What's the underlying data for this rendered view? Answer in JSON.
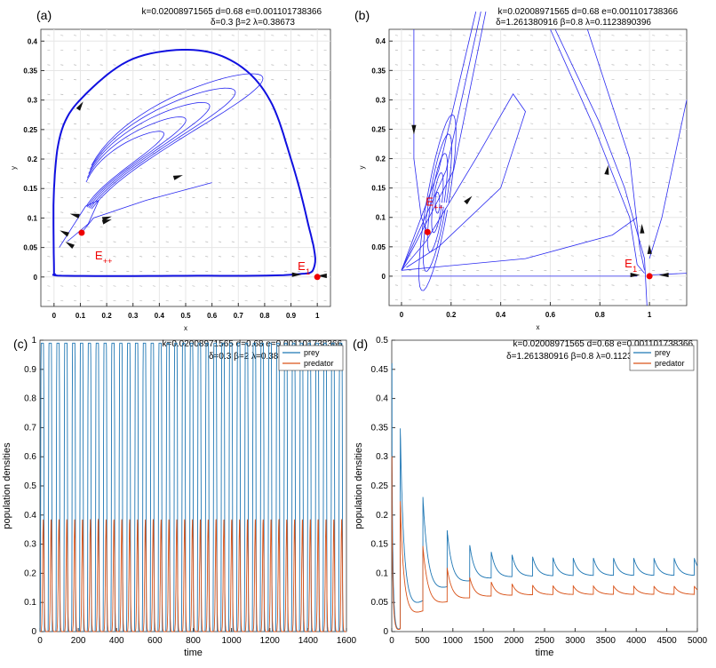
{
  "chart_data": [
    {
      "panel_label": "(a)",
      "type": "line",
      "subtype": "phase-portrait",
      "params_line1": "k=0.02008971565  d=0.68  e=0.001101738366",
      "params_line2": "δ=0.3  β=2  λ=0.38673",
      "xlabel": "x",
      "ylabel": "y",
      "xlim": [
        -0.05,
        1.05
      ],
      "ylim": [
        -0.05,
        0.42
      ],
      "xticks": [
        "0",
        "0.1",
        "0.2",
        "0.3",
        "0.4",
        "0.5",
        "0.6",
        "0.7",
        "0.8",
        "0.9",
        "1"
      ],
      "yticks": [
        "0",
        "0.05",
        "0.1",
        "0.15",
        "0.2",
        "0.25",
        "0.3",
        "0.35",
        "0.4"
      ],
      "grid": true,
      "equilibria": [
        {
          "label": "E",
          "sub": "++",
          "x": 0.105,
          "y": 0.075
        },
        {
          "label": "E",
          "sub": "1",
          "x": 1,
          "y": 0
        }
      ],
      "limit_cycle": [
        [
          0,
          0.005
        ],
        [
          0,
          0.15
        ],
        [
          0.03,
          0.25
        ],
        [
          0.12,
          0.31
        ],
        [
          0.3,
          0.37
        ],
        [
          0.53,
          0.385
        ],
        [
          0.7,
          0.36
        ],
        [
          0.82,
          0.3
        ],
        [
          0.9,
          0.2
        ],
        [
          0.96,
          0.1
        ],
        [
          0.99,
          0.02
        ],
        [
          0.9,
          0.004
        ],
        [
          0.5,
          0.002
        ],
        [
          0.05,
          0.002
        ],
        [
          0,
          0.005
        ]
      ]
    },
    {
      "panel_label": "(b)",
      "type": "line",
      "subtype": "phase-portrait",
      "params_line1": "k=0.02008971565  d=0.68  e=0.001101738366",
      "params_line2": "δ=1.261380916  β=0.8  λ=0.1123890396",
      "xlabel": "x",
      "ylabel": "y",
      "xlim": [
        -0.05,
        1.15
      ],
      "ylim": [
        -0.05,
        0.42
      ],
      "xticks": [
        "0",
        "0.2",
        "0.4",
        "0.6",
        "0.8",
        "1"
      ],
      "yticks": [
        "0",
        "0.05",
        "0.1",
        "0.15",
        "0.2",
        "0.25",
        "0.3",
        "0.35",
        "0.4"
      ],
      "grid": true,
      "equilibria": [
        {
          "label": "E",
          "sub": "++",
          "x": 0.105,
          "y": 0.075
        },
        {
          "label": "E",
          "sub": "1",
          "x": 1,
          "y": 0
        }
      ]
    },
    {
      "panel_label": "(c)",
      "type": "line",
      "params_line1": "k=0.02008971565  d=0.68  e=0.001101738366",
      "params_line2": "δ=0.3  β=2  λ=0.38673",
      "xlabel": "time",
      "ylabel": "population densities",
      "xlim": [
        0,
        1600
      ],
      "ylim": [
        0,
        1
      ],
      "xticks": [
        "0",
        "200",
        "400",
        "600",
        "800",
        "1000",
        "1200",
        "1400",
        "1600"
      ],
      "yticks": [
        "0",
        "0.1",
        "0.2",
        "0.3",
        "0.4",
        "0.5",
        "0.6",
        "0.7",
        "0.8",
        "0.9",
        "1"
      ],
      "legend": "top-right",
      "series": [
        {
          "name": "prey",
          "color": "#1f77b4",
          "min": 0,
          "max": 0.99,
          "period": 41
        },
        {
          "name": "predator",
          "color": "#d95319",
          "min": 0,
          "max": 0.385,
          "period": 41
        }
      ]
    },
    {
      "panel_label": "(d)",
      "type": "line",
      "params_line1": "k=0.02008971565  d=0.68  e=0.001101738366",
      "params_line2": "δ=1.261380916  β=0.8  λ=0.1123890396",
      "xlabel": "time",
      "ylabel": "population densities",
      "xlim": [
        0,
        5000
      ],
      "ylim": [
        0,
        0.5
      ],
      "xticks": [
        "0",
        "500",
        "1000",
        "1500",
        "2000",
        "2500",
        "3000",
        "3500",
        "4000",
        "4500",
        "5000"
      ],
      "yticks": [
        "0",
        "0.05",
        "0.1",
        "0.15",
        "0.2",
        "0.25",
        "0.3",
        "0.35",
        "0.4",
        "0.45",
        "0.5"
      ],
      "legend": "top-right",
      "series": [
        {
          "name": "prey",
          "color": "#1f77b4",
          "start": 0.46,
          "mean": 0.105,
          "final_amplitude": 0.025,
          "period": 330
        },
        {
          "name": "predator",
          "color": "#d95319",
          "start": 0.3,
          "mean": 0.068,
          "final_amplitude": 0.012,
          "period": 330
        }
      ]
    }
  ]
}
